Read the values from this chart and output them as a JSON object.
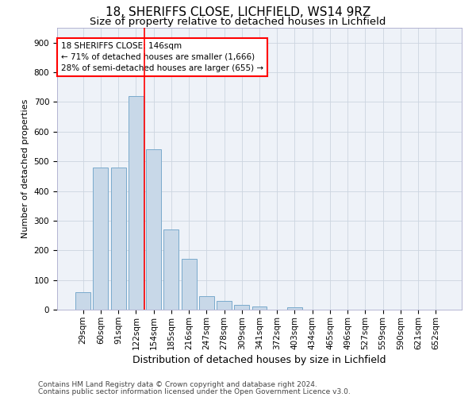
{
  "title1": "18, SHERIFFS CLOSE, LICHFIELD, WS14 9RZ",
  "title2": "Size of property relative to detached houses in Lichfield",
  "xlabel": "Distribution of detached houses by size in Lichfield",
  "ylabel": "Number of detached properties",
  "categories": [
    "29sqm",
    "60sqm",
    "91sqm",
    "122sqm",
    "154sqm",
    "185sqm",
    "216sqm",
    "247sqm",
    "278sqm",
    "309sqm",
    "341sqm",
    "372sqm",
    "403sqm",
    "434sqm",
    "465sqm",
    "496sqm",
    "527sqm",
    "559sqm",
    "590sqm",
    "621sqm",
    "652sqm"
  ],
  "values": [
    60,
    480,
    480,
    720,
    540,
    270,
    170,
    45,
    30,
    15,
    12,
    0,
    8,
    0,
    0,
    0,
    0,
    0,
    0,
    0,
    0
  ],
  "bar_color": "#c8d8e8",
  "bar_edge_color": "#7aaacc",
  "vline_color": "red",
  "annotation_text": "18 SHERIFFS CLOSE: 146sqm\n← 71% of detached houses are smaller (1,666)\n28% of semi-detached houses are larger (655) →",
  "annotation_box_color": "white",
  "annotation_box_edge_color": "red",
  "ylim": [
    0,
    950
  ],
  "yticks": [
    0,
    100,
    200,
    300,
    400,
    500,
    600,
    700,
    800,
    900
  ],
  "grid_color": "#ccd5e0",
  "background_color": "#eef2f8",
  "footer1": "Contains HM Land Registry data © Crown copyright and database right 2024.",
  "footer2": "Contains public sector information licensed under the Open Government Licence v3.0.",
  "title1_fontsize": 11,
  "title2_fontsize": 9.5,
  "xlabel_fontsize": 9,
  "ylabel_fontsize": 8,
  "tick_fontsize": 7.5,
  "annot_fontsize": 7.5,
  "footer_fontsize": 6.5
}
